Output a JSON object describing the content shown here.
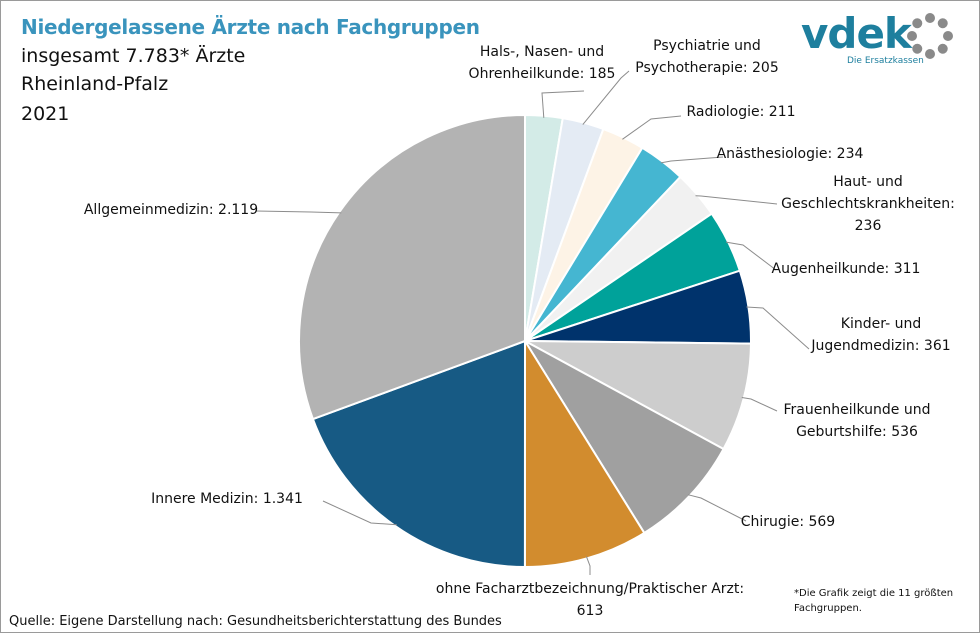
{
  "header": {
    "title": "Niedergelassene Ärzte nach Fachgruppen",
    "line1": "insgesamt 7.783* Ärzte",
    "line2": "Rheinland-Pfalz",
    "line3": "2021"
  },
  "logo": {
    "word": "vdek",
    "tagline": "Die Ersatzkassen"
  },
  "footer": {
    "source": "Quelle: Eigene Darstellung nach: Gesundheitsberichterstattung  des Bundes",
    "note_line1": "*Die Grafik zeigt die 11 größten",
    "note_line2": "Fachgruppen."
  },
  "chart_data": {
    "type": "pie",
    "title": "Niedergelassene Ärzte nach Fachgruppen",
    "start": "12 o'clock",
    "direction": "clockwise",
    "slices": [
      {
        "name": "Hals-, Nasen- und Ohrenheilkunde",
        "value": 185,
        "value_label": "185",
        "color": "#d3ebe7",
        "label_lines": [
          "Hals-, Nasen- und",
          "Ohrenheilkunde: 185"
        ]
      },
      {
        "name": "Psychiatrie und Psychotherapie",
        "value": 205,
        "value_label": "205",
        "color": "#e4ebf4",
        "label_lines": [
          "Psychiatrie und",
          "Psychotherapie: 205"
        ]
      },
      {
        "name": "Radiologie",
        "value": 211,
        "value_label": "211",
        "color": "#fdf3e6",
        "label_lines": [
          "Radiologie: 211"
        ]
      },
      {
        "name": "Anästhesiologie",
        "value": 234,
        "value_label": "234",
        "color": "#45b6d1",
        "label_lines": [
          "Anästhesiologie: 234"
        ]
      },
      {
        "name": "Haut- und Geschlechtskrankheiten",
        "value": 236,
        "value_label": "236",
        "color": "#f1f1f1",
        "label_lines": [
          "Haut- und",
          "Geschlechtskrankheiten:",
          "236"
        ]
      },
      {
        "name": "Augenheilkunde",
        "value": 311,
        "value_label": "311",
        "color": "#00a29a",
        "label_lines": [
          "Augenheilkunde: 311"
        ]
      },
      {
        "name": "Kinder- und Jugendmedizin",
        "value": 361,
        "value_label": "361",
        "color": "#00336c",
        "label_lines": [
          "Kinder- und",
          "Jugendmedizin: 361"
        ]
      },
      {
        "name": "Frauenheilkunde und Geburtshilfe",
        "value": 536,
        "value_label": "536",
        "color": "#cdcdcd",
        "label_lines": [
          "Frauenheilkunde und",
          "Geburtshilfe: 536"
        ]
      },
      {
        "name": "Chirugie",
        "value": 569,
        "value_label": "569",
        "color": "#a0a0a0",
        "label_lines": [
          "Chirugie: 569"
        ]
      },
      {
        "name": "ohne Facharztbezeichnung/Praktischer Arzt",
        "value": 613,
        "value_label": "613",
        "color": "#d28c2e",
        "label_lines": [
          "ohne Facharztbezeichnung/Praktischer Arzt:",
          "613"
        ]
      },
      {
        "name": "Innere Medizin",
        "value": 1341,
        "value_label": "1.341",
        "color": "#175a84",
        "label_lines": [
          "Innere Medizin: 1.341"
        ]
      },
      {
        "name": "Allgemeinmedizin",
        "value": 2119,
        "value_label": "2.119",
        "color": "#b3b3b3",
        "label_lines": [
          "Allgemeinmedizin: 2.119"
        ]
      }
    ]
  }
}
